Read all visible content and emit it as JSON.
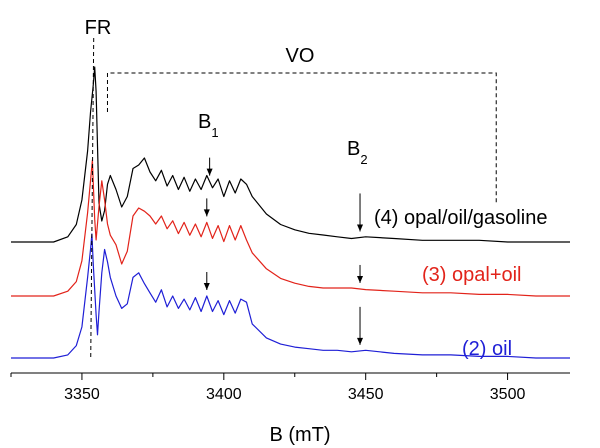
{
  "chart_data": {
    "type": "line",
    "xlabel": "B (mT)",
    "ylabel": "",
    "xlim": [
      3325,
      3522
    ],
    "xticks": [
      3350,
      3400,
      3450,
      3500
    ],
    "yticks": [],
    "grid": false,
    "colors": {
      "axis": "#000000",
      "series_4": "#000000",
      "series_3": "#e2231a",
      "series_2": "#1f1fd6"
    },
    "series": [
      {
        "name": "(4) opal/oil/gasoline",
        "x": [
          3325,
          3340,
          3345,
          3348,
          3350,
          3352,
          3353,
          3354,
          3354.5,
          3355,
          3355.5,
          3356,
          3357,
          3358,
          3359,
          3360,
          3362,
          3364,
          3366,
          3368,
          3370,
          3372,
          3374,
          3376,
          3378,
          3380,
          3382,
          3384,
          3386,
          3388,
          3390,
          3392,
          3394,
          3396,
          3398,
          3400,
          3402,
          3404,
          3406,
          3408,
          3410,
          3415,
          3420,
          3425,
          3430,
          3435,
          3440,
          3445,
          3450,
          3460,
          3470,
          3480,
          3490,
          3500,
          3510,
          3522
        ],
        "y": [
          0.0,
          0.0,
          0.03,
          0.1,
          0.24,
          0.52,
          0.74,
          0.9,
          1.0,
          0.86,
          0.55,
          0.22,
          0.12,
          0.18,
          0.33,
          0.38,
          0.3,
          0.2,
          0.26,
          0.42,
          0.44,
          0.48,
          0.4,
          0.35,
          0.41,
          0.32,
          0.38,
          0.3,
          0.37,
          0.29,
          0.36,
          0.3,
          0.38,
          0.31,
          0.36,
          0.26,
          0.35,
          0.28,
          0.36,
          0.33,
          0.26,
          0.16,
          0.1,
          0.07,
          0.05,
          0.04,
          0.03,
          0.02,
          0.03,
          0.02,
          0.01,
          0.01,
          0.01,
          0.0,
          0.0,
          0.0
        ]
      },
      {
        "name": "(3) opal+oil",
        "x": [
          3325,
          3340,
          3345,
          3348,
          3350,
          3352,
          3353,
          3353.7,
          3354,
          3354.5,
          3355,
          3356,
          3357,
          3358,
          3359,
          3360,
          3362,
          3364,
          3366,
          3368,
          3370,
          3372,
          3374,
          3376,
          3378,
          3380,
          3382,
          3384,
          3386,
          3388,
          3390,
          3392,
          3394,
          3396,
          3398,
          3400,
          3402,
          3404,
          3406,
          3408,
          3410,
          3415,
          3420,
          3425,
          3430,
          3435,
          3440,
          3445,
          3450,
          3460,
          3470,
          3480,
          3490,
          3500,
          3510,
          3522
        ],
        "y": [
          0.0,
          0.0,
          0.03,
          0.09,
          0.22,
          0.52,
          0.72,
          0.85,
          0.7,
          0.48,
          0.35,
          0.56,
          0.72,
          0.6,
          0.45,
          0.38,
          0.32,
          0.2,
          0.28,
          0.5,
          0.55,
          0.53,
          0.5,
          0.45,
          0.5,
          0.42,
          0.47,
          0.39,
          0.46,
          0.38,
          0.45,
          0.37,
          0.46,
          0.36,
          0.44,
          0.34,
          0.44,
          0.35,
          0.44,
          0.35,
          0.27,
          0.17,
          0.11,
          0.08,
          0.06,
          0.05,
          0.05,
          0.05,
          0.04,
          0.03,
          0.02,
          0.02,
          0.01,
          0.01,
          0.0,
          0.0
        ]
      },
      {
        "name": "(2) oil",
        "x": [
          3325,
          3340,
          3345,
          3348,
          3350,
          3352,
          3353,
          3353.5,
          3354,
          3355,
          3355.5,
          3356,
          3357,
          3358,
          3359,
          3360,
          3362,
          3364,
          3366,
          3368,
          3370,
          3372,
          3374,
          3376,
          3378,
          3380,
          3382,
          3384,
          3386,
          3388,
          3390,
          3392,
          3394,
          3396,
          3398,
          3400,
          3402,
          3404,
          3406,
          3408,
          3410,
          3415,
          3420,
          3425,
          3430,
          3435,
          3440,
          3445,
          3450,
          3460,
          3470,
          3480,
          3490,
          3500,
          3510,
          3522
        ],
        "y": [
          0.0,
          0.0,
          0.02,
          0.08,
          0.2,
          0.52,
          0.7,
          0.8,
          0.6,
          0.28,
          0.15,
          0.3,
          0.55,
          0.7,
          0.62,
          0.52,
          0.4,
          0.32,
          0.35,
          0.52,
          0.55,
          0.48,
          0.42,
          0.36,
          0.44,
          0.33,
          0.4,
          0.32,
          0.38,
          0.31,
          0.39,
          0.3,
          0.4,
          0.3,
          0.37,
          0.28,
          0.37,
          0.29,
          0.38,
          0.36,
          0.22,
          0.13,
          0.09,
          0.07,
          0.06,
          0.05,
          0.05,
          0.04,
          0.05,
          0.03,
          0.02,
          0.02,
          0.01,
          0.01,
          0.0,
          0.0
        ]
      }
    ],
    "annotations": {
      "fr": "FR",
      "vo": "VO",
      "b1": "B",
      "b1_sub": "1",
      "b2": "B",
      "b2_sub": "2"
    },
    "arrow_marks": [
      {
        "series": 0,
        "x": 3395
      },
      {
        "series": 0,
        "x": 3448
      },
      {
        "series": 1,
        "x": 3394
      },
      {
        "series": 1,
        "x": 3448
      },
      {
        "series": 2,
        "x": 3394
      },
      {
        "series": 2,
        "x": 3448
      }
    ]
  }
}
